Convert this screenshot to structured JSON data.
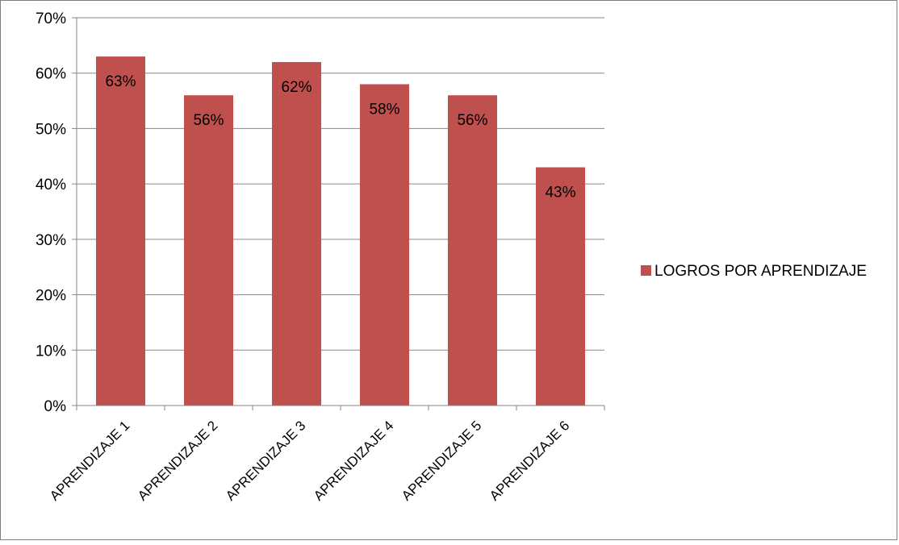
{
  "chart_data": {
    "type": "bar",
    "title": "",
    "xlabel": "",
    "ylabel": "",
    "categories": [
      "APRENDIZAJE 1",
      "APRENDIZAJE 2",
      "APRENDIZAJE 3",
      "APRENDIZAJE 4",
      "APRENDIZAJE 5",
      "APRENDIZAJE 6"
    ],
    "series": [
      {
        "name": "LOGROS POR APRENDIZAJE",
        "values": [
          63,
          56,
          62,
          58,
          56,
          43
        ],
        "data_labels": [
          "63%",
          "56%",
          "62%",
          "58%",
          "56%",
          "43%"
        ],
        "color": "#c0504d"
      }
    ],
    "ylim": [
      0,
      70
    ],
    "yticks": [
      0,
      10,
      20,
      30,
      40,
      50,
      60,
      70
    ],
    "ytick_labels": [
      "0%",
      "10%",
      "20%",
      "30%",
      "40%",
      "50%",
      "60%",
      "70%"
    ],
    "grid": true,
    "legend_position": "right"
  }
}
